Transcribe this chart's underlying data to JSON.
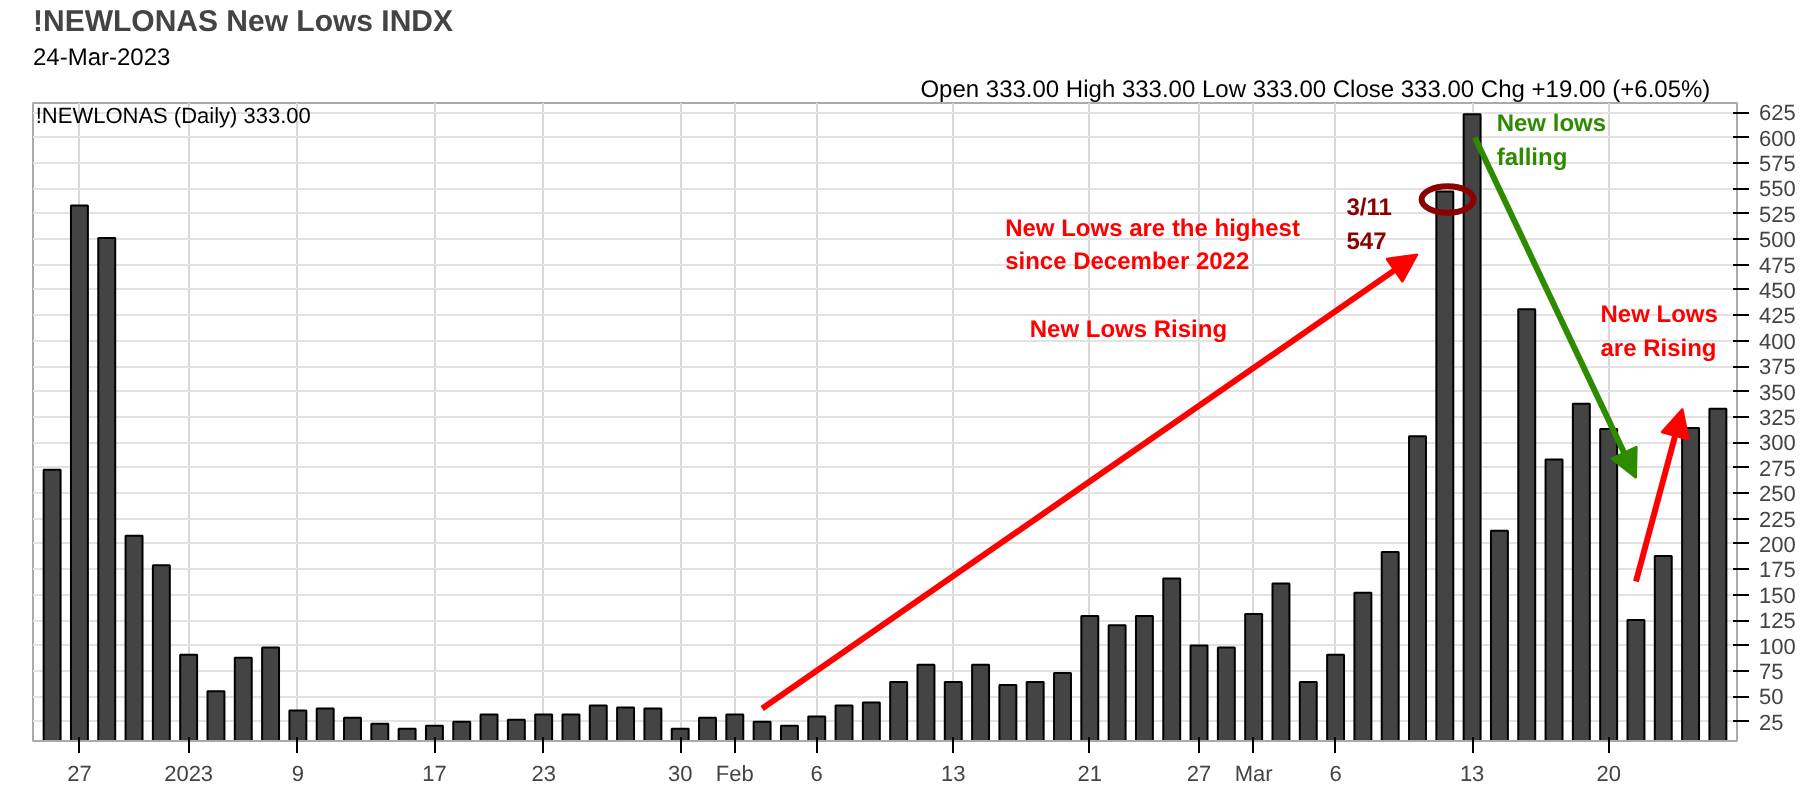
{
  "chart_data": {
    "type": "bar",
    "title": "!NEWLONAS New Lows INDX",
    "categories": [
      null,
      "27",
      null,
      null,
      null,
      "2023",
      null,
      null,
      null,
      "9",
      null,
      null,
      null,
      null,
      "17",
      null,
      null,
      null,
      "23",
      null,
      null,
      null,
      null,
      "30",
      null,
      "Feb",
      null,
      null,
      "6",
      null,
      null,
      null,
      null,
      "13",
      null,
      null,
      null,
      null,
      "21",
      null,
      null,
      null,
      "27",
      null,
      "Mar",
      null,
      null,
      "6",
      null,
      null,
      null,
      null,
      "13",
      null,
      null,
      null,
      null,
      "20",
      null,
      null,
      null,
      null
    ],
    "values": [
      273,
      533,
      501,
      208,
      179,
      91,
      55,
      88,
      98,
      36,
      38,
      29,
      23,
      18,
      21,
      25,
      32,
      27,
      32,
      32,
      41,
      39,
      38,
      18,
      29,
      32,
      25,
      21,
      30,
      41,
      44,
      64,
      81,
      64,
      81,
      61,
      64,
      73,
      129,
      120,
      129,
      166,
      100,
      98,
      131,
      161,
      64,
      91,
      152,
      192,
      306,
      547,
      623,
      213,
      431,
      283,
      338,
      313,
      125,
      188,
      314,
      333
    ],
    "color": "#444444",
    "ylim": [
      6,
      634
    ],
    "yticks": [
      25,
      50,
      75,
      100,
      125,
      150,
      175,
      200,
      225,
      250,
      275,
      300,
      325,
      350,
      375,
      400,
      425,
      450,
      475,
      500,
      525,
      550,
      575,
      600,
      625
    ],
    "grid": true,
    "annotations": [
      "24-Mar-2023",
      "Open 333.00  High 333.00  Low 333.00  Close 333.00  Chg +19.00 (+6.05%)",
      "!NEWLONAS (Daily) 333.00",
      "3/11\n547",
      "New Lows are the highest\nsince December 2022",
      "New Lows Rising",
      "New lows\nfalling",
      "New Lows\nare Rising"
    ]
  }
}
